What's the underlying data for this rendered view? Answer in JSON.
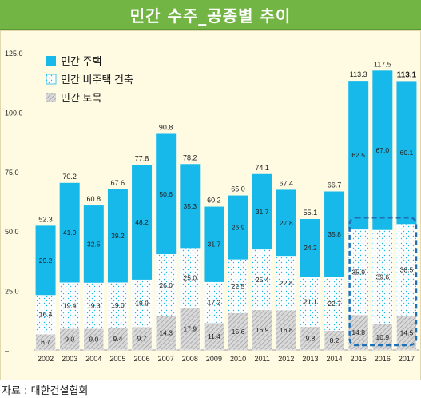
{
  "header": {
    "title": "민간 수주_공종별 추이"
  },
  "source": "자료 : 대한건설협회",
  "colors": {
    "housing": "#17b9ea",
    "nonhousing": "#ffffff",
    "civil": "#c9c9c9",
    "title_bg": "#73b544",
    "highlight": "#1f6fb5"
  },
  "chart_data": {
    "type": "bar",
    "stacked": true,
    "categories": [
      "2002",
      "2003",
      "2004",
      "2005",
      "2006",
      "2007",
      "2008",
      "2009",
      "2010",
      "2011",
      "2012",
      "2013",
      "2014",
      "2015",
      "2016",
      "2017"
    ],
    "series": [
      {
        "name": "민간 토목",
        "values": [
          6.7,
          9.0,
          9.0,
          9.4,
          9.7,
          14.3,
          17.9,
          11.4,
          15.6,
          16.9,
          16.8,
          9.8,
          8.2,
          14.8,
          10.9,
          14.5
        ]
      },
      {
        "name": "민간 비주택 건축",
        "values": [
          16.4,
          19.4,
          19.3,
          19.0,
          19.9,
          26.0,
          25.0,
          17.2,
          22.5,
          25.4,
          22.8,
          21.1,
          22.7,
          35.9,
          39.6,
          38.5
        ]
      },
      {
        "name": "민간 주택",
        "values": [
          29.2,
          41.9,
          32.5,
          39.2,
          48.2,
          50.6,
          35.3,
          31.7,
          26.9,
          31.7,
          27.8,
          24.2,
          35.8,
          62.5,
          67.0,
          60.1
        ]
      }
    ],
    "value_labels": {
      "civil": [
        "6.7",
        "9.0",
        "9.0",
        "9.4",
        "9.7",
        "14.3",
        "17.9",
        "11.4",
        "15.6",
        "16.9",
        "16.8",
        "9.8",
        "8.2",
        "14.8",
        "10.9",
        "14.5"
      ],
      "nonhousing": [
        "16.4",
        "19.4",
        "19.3",
        "19.0",
        "19.9",
        "26.0",
        "25.0",
        "17.2",
        "22.5",
        "25.4",
        "22.8",
        "21.1",
        "22.7",
        "35.9",
        "39.6",
        "38.5"
      ],
      "housing": [
        "29.2",
        "41.9",
        "32.5",
        "39.2",
        "48.2",
        "50.6",
        "35.3",
        "31.7",
        "26.9",
        "31.7",
        "27.8",
        "24.2",
        "35.8",
        "62.5",
        "67.0",
        "60.1"
      ]
    },
    "totals": [
      52.3,
      70.2,
      60.8,
      67.6,
      77.8,
      90.8,
      78.2,
      60.2,
      65.0,
      74.1,
      67.4,
      55.1,
      66.7,
      113.3,
      117.5,
      113.1
    ],
    "total_labels": [
      "52.3",
      "70.2",
      "60.8",
      "67.6",
      "77.8",
      "90.8",
      "78.2",
      "60.2",
      "65.0",
      "74.1",
      "67.4",
      "55.1",
      "66.7",
      "113.3",
      "117.5",
      "113.1"
    ],
    "highlight_last_total": true,
    "yticks": [
      "–",
      "25.0",
      "50.0",
      "75.0",
      "100.0",
      "125.0"
    ],
    "ylim": [
      0,
      125
    ],
    "legend": [
      {
        "key": "housing",
        "label": "민간 주택"
      },
      {
        "key": "nonhousing",
        "label": "민간 비주택 건축"
      },
      {
        "key": "civil",
        "label": "민간 토목"
      }
    ],
    "legend_position": "top-left",
    "grid": false,
    "highlight_box": "2015-2017 non-housing segments"
  }
}
